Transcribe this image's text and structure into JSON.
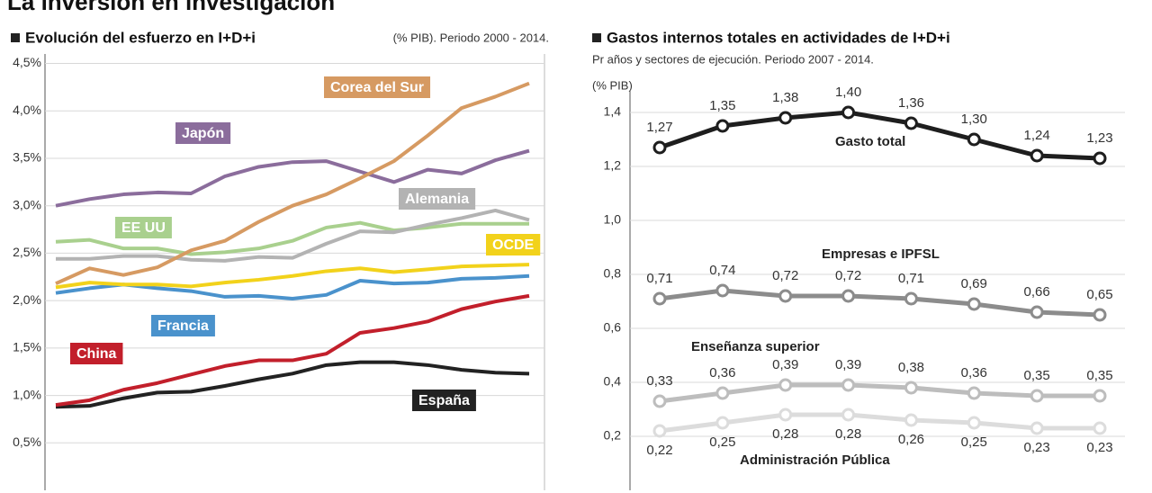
{
  "title": "La inversión en investigación",
  "chart_data": [
    {
      "type": "line",
      "title": "Evolución del esfuerzo en I+D+i",
      "subtitle": "(% PIB). Periodo 2000 - 2014.",
      "ylim": [
        0,
        4.6
      ],
      "yticks": [
        {
          "value": 0.5,
          "label": "0,5%"
        },
        {
          "value": 1.0,
          "label": "1,0%"
        },
        {
          "value": 1.5,
          "label": "1,5%"
        },
        {
          "value": 2.0,
          "label": "2,0%"
        },
        {
          "value": 2.5,
          "label": "2,5%"
        },
        {
          "value": 3.0,
          "label": "3,0%"
        },
        {
          "value": 3.5,
          "label": "3,5%"
        },
        {
          "value": 4.0,
          "label": "4,0%"
        },
        {
          "value": 4.5,
          "label": "4,5%"
        }
      ],
      "grid": true,
      "series": [
        {
          "name": "Corea del Sur",
          "color": "#d69a62",
          "values": [
            2.18,
            2.34,
            2.27,
            2.35,
            2.53,
            2.63,
            2.83,
            3.0,
            3.12,
            3.29,
            3.47,
            3.74,
            4.03,
            4.15,
            4.29
          ]
        },
        {
          "name": "Japón",
          "color": "#8b6d9c",
          "values": [
            3.0,
            3.07,
            3.12,
            3.14,
            3.13,
            3.31,
            3.41,
            3.46,
            3.47,
            3.36,
            3.25,
            3.38,
            3.34,
            3.48,
            3.58
          ]
        },
        {
          "name": "Alemania",
          "color": "#b3b3b3",
          "values": [
            2.44,
            2.44,
            2.47,
            2.47,
            2.43,
            2.42,
            2.46,
            2.45,
            2.6,
            2.73,
            2.72,
            2.8,
            2.87,
            2.95,
            2.85
          ]
        },
        {
          "name": "EE UU",
          "color": "#a9d08e",
          "values": [
            2.62,
            2.64,
            2.55,
            2.55,
            2.49,
            2.51,
            2.55,
            2.63,
            2.77,
            2.82,
            2.74,
            2.77,
            2.81,
            2.81,
            2.81
          ]
        },
        {
          "name": "OCDE",
          "color": "#f2d21b",
          "values": [
            2.14,
            2.19,
            2.17,
            2.17,
            2.15,
            2.19,
            2.22,
            2.26,
            2.31,
            2.34,
            2.3,
            2.33,
            2.36,
            2.37,
            2.38
          ]
        },
        {
          "name": "Francia",
          "color": "#4a92cc",
          "values": [
            2.08,
            2.13,
            2.17,
            2.13,
            2.1,
            2.04,
            2.05,
            2.02,
            2.06,
            2.21,
            2.18,
            2.19,
            2.23,
            2.24,
            2.26
          ]
        },
        {
          "name": "China",
          "color": "#c21f2b",
          "values": [
            0.9,
            0.95,
            1.06,
            1.13,
            1.22,
            1.31,
            1.37,
            1.37,
            1.44,
            1.66,
            1.71,
            1.78,
            1.91,
            1.99,
            2.05
          ]
        },
        {
          "name": "España",
          "color": "#222222",
          "values": [
            0.88,
            0.89,
            0.97,
            1.03,
            1.04,
            1.1,
            1.17,
            1.23,
            1.32,
            1.35,
            1.35,
            1.32,
            1.27,
            1.24,
            1.23
          ]
        }
      ]
    },
    {
      "type": "line",
      "title": "Gastos internos totales en actividades de I+D+i",
      "subtitle": "Pr años y sectores de ejecución. Periodo 2007 - 2014.",
      "y_label": "(% PIB)",
      "ylim": [
        0,
        1.5
      ],
      "yticks": [
        {
          "value": 0.2,
          "label": "0,2"
        },
        {
          "value": 0.4,
          "label": "0,4"
        },
        {
          "value": 0.6,
          "label": "0,6"
        },
        {
          "value": 0.8,
          "label": "0,8"
        },
        {
          "value": 1.0,
          "label": "1,0"
        },
        {
          "value": 1.2,
          "label": "1,2"
        },
        {
          "value": 1.4,
          "label": "1,4"
        }
      ],
      "grid": true,
      "series": [
        {
          "name": "Gasto total",
          "color": "#1e1e1e",
          "values": [
            1.27,
            1.35,
            1.38,
            1.4,
            1.36,
            1.3,
            1.24,
            1.23
          ],
          "value_labels": [
            "1,27",
            "1,35",
            "1,38",
            "1,40",
            "1,36",
            "1,30",
            "1,24",
            "1,23"
          ]
        },
        {
          "name": "Empresas e IPFSL",
          "color": "#8c8c8c",
          "values": [
            0.71,
            0.74,
            0.72,
            0.72,
            0.71,
            0.69,
            0.66,
            0.65
          ],
          "value_labels": [
            "0,71",
            "0,74",
            "0,72",
            "0,72",
            "0,71",
            "0,69",
            "0,66",
            "0,65"
          ]
        },
        {
          "name": "Enseñanza superior",
          "color": "#bdbdbd",
          "values": [
            0.33,
            0.36,
            0.39,
            0.39,
            0.38,
            0.36,
            0.35,
            0.35
          ],
          "value_labels": [
            "0,33",
            "0,36",
            "0,39",
            "0,39",
            "0,38",
            "0,36",
            "0,35",
            "0,35"
          ]
        },
        {
          "name": "Administración Pública",
          "color": "#dcdcdc",
          "values": [
            0.22,
            0.25,
            0.28,
            0.28,
            0.26,
            0.25,
            0.23,
            0.23
          ],
          "value_labels": [
            "0,22",
            "0,25",
            "0,28",
            "0,28",
            "0,26",
            "0,25",
            "0,23",
            "0,23"
          ]
        }
      ]
    }
  ]
}
